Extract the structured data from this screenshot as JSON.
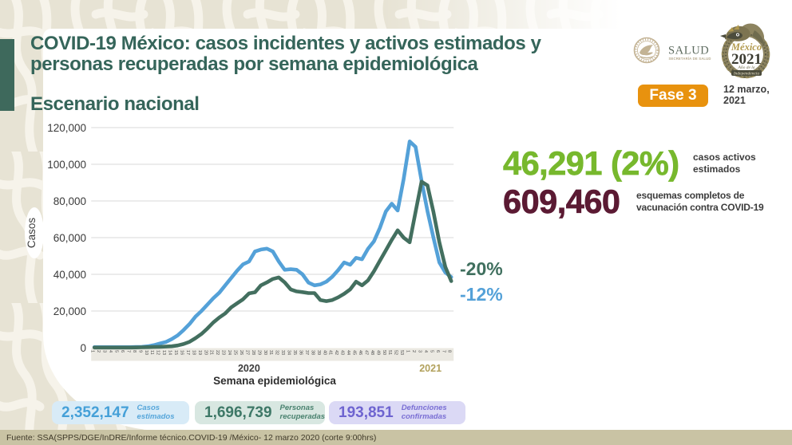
{
  "header": {
    "title_line1": "COVID-19 México: casos incidentes y activos estimados y",
    "title_line2": "personas recuperadas por semana epidemiológica",
    "subtitle": "Escenario nacional",
    "phase_badge": "Fase 3",
    "date_line1": "12 marzo,",
    "date_line2": "2021"
  },
  "logos": {
    "salud": {
      "name": "SALUD",
      "subtitle": "SECRETARÍA DE SALUD"
    },
    "mexico2021": {
      "script": "México",
      "year": "2021",
      "sub1": "Año de la",
      "sub2": "Independencia"
    }
  },
  "stats": {
    "active_cases": {
      "value": "46,291 (2%)",
      "label": "casos activos estimados",
      "color": "#77b82d"
    },
    "vaccination": {
      "value": "609,460",
      "label": "esquemas completos de vacunación contra COVID-19",
      "color": "#5b1a33"
    },
    "recovered_change": {
      "value": "-20%",
      "color": "#3f6f5e"
    },
    "incident_change": {
      "value": "-12%",
      "color": "#54a1d8"
    }
  },
  "summary_pills": [
    {
      "value": "2,352,147",
      "label": "Casos estimados",
      "bg": "#d8ebf7",
      "color": "#45a0d8"
    },
    {
      "value": "1,696,739",
      "label": "Personas recuperadas",
      "bg": "#d8e7e1",
      "color": "#3e7867"
    },
    {
      "value": "193,851",
      "label": "Defunciones confirmadas",
      "bg": "#dbd9f5",
      "color": "#6e64d0"
    }
  ],
  "footer": {
    "source": "Fuente: SSA(SPPS/DGE/InDRE/Informe técnico.COVID-19 /México- 12 marzo 2020 (corte 9:00hrs)"
  },
  "chart_data": {
    "type": "line",
    "title": "Escenario nacional",
    "xlabel": "Semana epidemiológica",
    "ylabel": "Casos",
    "ylim": [
      0,
      120000
    ],
    "grid": true,
    "yticks": [
      0,
      20000,
      40000,
      60000,
      80000,
      100000,
      120000
    ],
    "ytick_labels": [
      "0",
      "20,000",
      "40,000",
      "60,000",
      "80,000",
      "100,000",
      "120,000"
    ],
    "categories": [
      "1",
      "2",
      "3",
      "4",
      "5",
      "6",
      "7",
      "8",
      "9",
      "10",
      "11",
      "12",
      "13",
      "14",
      "15",
      "16",
      "17",
      "18",
      "19",
      "20",
      "21",
      "22",
      "23",
      "24",
      "25",
      "26",
      "27",
      "28",
      "29",
      "30",
      "31",
      "32",
      "33",
      "34",
      "35",
      "36",
      "37",
      "38",
      "39",
      "40",
      "41",
      "42",
      "43",
      "44",
      "45",
      "46",
      "47",
      "48",
      "49",
      "50",
      "51",
      "52",
      "53",
      "1",
      "2",
      "3",
      "4",
      "5",
      "6",
      "7",
      "8"
    ],
    "x_groups": [
      {
        "label": "2020",
        "start_week": 1,
        "end_week": 53,
        "color": "#3b3b3b"
      },
      {
        "label": "2021",
        "start_week": 54,
        "end_week": 61,
        "color": "#b2a15c"
      }
    ],
    "series": [
      {
        "name": "Casos incidentes estimados",
        "color": "#54a1d8",
        "values": [
          300,
          300,
          300,
          300,
          300,
          300,
          300,
          400,
          500,
          800,
          1400,
          2300,
          3100,
          4700,
          6700,
          9600,
          12900,
          17000,
          20000,
          23500,
          27000,
          30000,
          34000,
          38000,
          42000,
          45500,
          47000,
          52500,
          53500,
          54000,
          52500,
          47000,
          42500,
          42800,
          42500,
          40000,
          35500,
          34000,
          34500,
          36000,
          38700,
          42300,
          46500,
          45200,
          49000,
          48200,
          53900,
          58000,
          65300,
          74300,
          78500,
          74800,
          92000,
          112500,
          109500,
          91000,
          74500,
          60000,
          46500,
          41000,
          38500
        ]
      },
      {
        "name": "Personas recuperadas",
        "color": "#436f5f",
        "values": [
          100,
          100,
          100,
          100,
          100,
          100,
          100,
          150,
          200,
          300,
          400,
          500,
          600,
          800,
          1200,
          2000,
          3200,
          5200,
          7500,
          10500,
          13800,
          16500,
          18700,
          22000,
          24200,
          26400,
          29600,
          30200,
          34000,
          35600,
          37500,
          38300,
          35600,
          31800,
          30700,
          30300,
          29800,
          29800,
          26000,
          25400,
          26000,
          27500,
          29400,
          31800,
          36000,
          34000,
          36700,
          41700,
          47400,
          53100,
          58800,
          64000,
          60000,
          57500,
          74000,
          90500,
          88500,
          74000,
          57500,
          44000,
          36300
        ]
      }
    ],
    "annotations": [
      {
        "text": "-20%",
        "series": "Personas recuperadas"
      },
      {
        "text": "-12%",
        "series": "Casos incidentes estimados"
      }
    ]
  }
}
